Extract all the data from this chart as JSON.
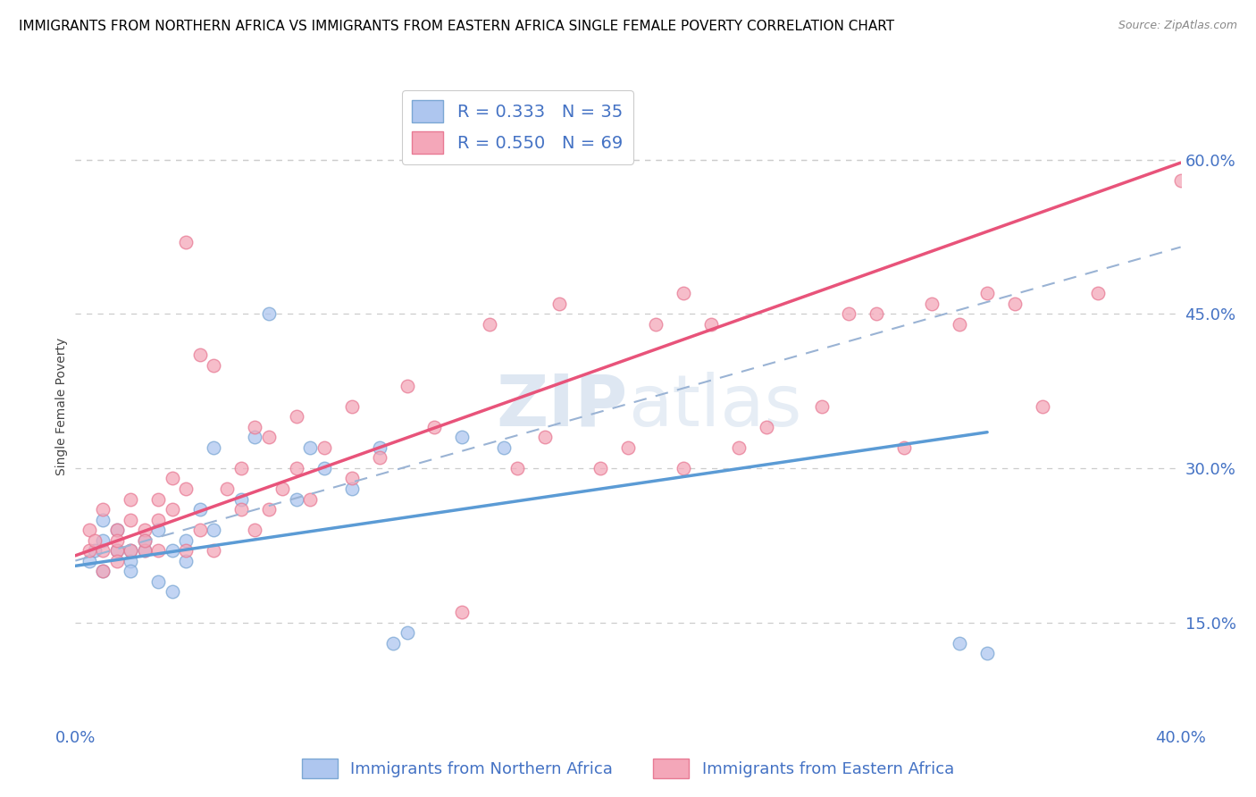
{
  "title": "IMMIGRANTS FROM NORTHERN AFRICA VS IMMIGRANTS FROM EASTERN AFRICA SINGLE FEMALE POVERTY CORRELATION CHART",
  "source": "Source: ZipAtlas.com",
  "ylabel": "Single Female Poverty",
  "right_yticks": [
    0.15,
    0.3,
    0.45,
    0.6
  ],
  "right_yticklabels": [
    "15.0%",
    "30.0%",
    "45.0%",
    "60.0%"
  ],
  "bottom_legend": [
    "Immigrants from Northern Africa",
    "Immigrants from Eastern Africa"
  ],
  "watermark_zip": "ZIP",
  "watermark_atlas": "atlas",
  "axis_color": "#4472c4",
  "title_color": "#000000",
  "background_color": "#ffffff",
  "grid_color": "#cccccc",
  "xlim": [
    0.0,
    0.4
  ],
  "ylim": [
    0.05,
    0.67
  ],
  "blue_scatter_x": [
    0.005,
    0.007,
    0.01,
    0.01,
    0.01,
    0.015,
    0.015,
    0.02,
    0.02,
    0.02,
    0.025,
    0.025,
    0.03,
    0.03,
    0.035,
    0.035,
    0.04,
    0.04,
    0.045,
    0.05,
    0.05,
    0.06,
    0.065,
    0.07,
    0.08,
    0.085,
    0.09,
    0.1,
    0.11,
    0.115,
    0.12,
    0.14,
    0.155,
    0.32,
    0.33
  ],
  "blue_scatter_y": [
    0.21,
    0.22,
    0.23,
    0.25,
    0.2,
    0.22,
    0.24,
    0.22,
    0.21,
    0.2,
    0.22,
    0.23,
    0.24,
    0.19,
    0.22,
    0.18,
    0.23,
    0.21,
    0.26,
    0.24,
    0.32,
    0.27,
    0.33,
    0.45,
    0.27,
    0.32,
    0.3,
    0.28,
    0.32,
    0.13,
    0.14,
    0.33,
    0.32,
    0.13,
    0.12
  ],
  "pink_scatter_x": [
    0.005,
    0.005,
    0.007,
    0.01,
    0.01,
    0.01,
    0.015,
    0.015,
    0.015,
    0.015,
    0.02,
    0.02,
    0.02,
    0.025,
    0.025,
    0.025,
    0.03,
    0.03,
    0.03,
    0.035,
    0.035,
    0.04,
    0.04,
    0.04,
    0.045,
    0.045,
    0.05,
    0.05,
    0.055,
    0.06,
    0.06,
    0.065,
    0.065,
    0.07,
    0.07,
    0.075,
    0.08,
    0.08,
    0.085,
    0.09,
    0.1,
    0.1,
    0.11,
    0.12,
    0.13,
    0.14,
    0.15,
    0.16,
    0.17,
    0.175,
    0.19,
    0.2,
    0.21,
    0.22,
    0.23,
    0.24,
    0.25,
    0.27,
    0.28,
    0.29,
    0.3,
    0.31,
    0.32,
    0.33,
    0.34,
    0.35,
    0.37,
    0.4,
    0.22
  ],
  "pink_scatter_y": [
    0.22,
    0.24,
    0.23,
    0.22,
    0.26,
    0.2,
    0.22,
    0.24,
    0.21,
    0.23,
    0.22,
    0.25,
    0.27,
    0.22,
    0.24,
    0.23,
    0.22,
    0.27,
    0.25,
    0.26,
    0.29,
    0.22,
    0.28,
    0.52,
    0.24,
    0.41,
    0.22,
    0.4,
    0.28,
    0.26,
    0.3,
    0.24,
    0.34,
    0.26,
    0.33,
    0.28,
    0.3,
    0.35,
    0.27,
    0.32,
    0.29,
    0.36,
    0.31,
    0.38,
    0.34,
    0.16,
    0.44,
    0.3,
    0.33,
    0.46,
    0.3,
    0.32,
    0.44,
    0.3,
    0.44,
    0.32,
    0.34,
    0.36,
    0.45,
    0.45,
    0.32,
    0.46,
    0.44,
    0.47,
    0.46,
    0.36,
    0.47,
    0.58,
    0.47
  ],
  "blue_line_x": [
    0.0,
    0.33
  ],
  "blue_line_y": [
    0.205,
    0.335
  ],
  "pink_line_x": [
    0.0,
    0.4
  ],
  "pink_line_y": [
    0.215,
    0.597
  ],
  "dashed_line_x": [
    0.0,
    0.4
  ],
  "dashed_line_y": [
    0.21,
    0.515
  ],
  "legend_r1": "R = 0.333   N = 35",
  "legend_r2": "R = 0.550   N = 69",
  "legend_color1": "#aec6ef",
  "legend_color2": "#f4a7b9",
  "legend_edge1": "#7ba7d4",
  "legend_edge2": "#e87a94"
}
